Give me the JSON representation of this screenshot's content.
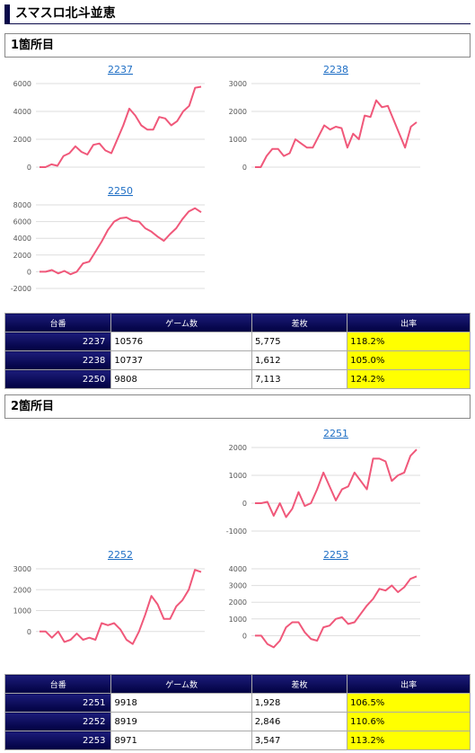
{
  "header": {
    "title": "スマスロ北斗並恵"
  },
  "sections": [
    {
      "title": "1箇所目",
      "charts": [
        {
          "type": "line",
          "title": "2237",
          "color": "#f0587a",
          "ylim": [
            0,
            6000
          ],
          "yticks": [
            0,
            2000,
            4000,
            6000
          ],
          "grid": true,
          "values": [
            0,
            0,
            200,
            100,
            800,
            1000,
            1500,
            1100,
            900,
            1600,
            1700,
            1200,
            1000,
            2000,
            3000,
            4200,
            3700,
            3000,
            2700,
            2700,
            3600,
            3500,
            3000,
            3300,
            4000,
            4400,
            5700,
            5775
          ]
        },
        {
          "type": "line",
          "title": "2238",
          "color": "#f0587a",
          "ylim": [
            0,
            3000
          ],
          "yticks": [
            0,
            1000,
            2000,
            3000
          ],
          "grid": true,
          "values": [
            0,
            0,
            400,
            650,
            650,
            400,
            500,
            1000,
            850,
            700,
            700,
            1100,
            1500,
            1350,
            1450,
            1400,
            700,
            1200,
            1000,
            1850,
            1800,
            2400,
            2150,
            2200,
            1700,
            1200,
            700,
            1450,
            1612
          ]
        },
        {
          "type": "line",
          "title": "2250",
          "color": "#f0587a",
          "ylim": [
            -2000,
            8000
          ],
          "yticks": [
            -2000,
            0,
            2000,
            4000,
            6000,
            8000
          ],
          "grid": true,
          "values": [
            0,
            0,
            200,
            -200,
            100,
            -300,
            0,
            1000,
            1200,
            2400,
            3600,
            5000,
            6000,
            6400,
            6500,
            6100,
            6000,
            5200,
            4800,
            4200,
            3700,
            4500,
            5200,
            6300,
            7200,
            7600,
            7113
          ]
        }
      ],
      "table": {
        "columns": [
          "台番",
          "ゲーム数",
          "差枚",
          "出率"
        ],
        "rows": [
          [
            "2237",
            "10576",
            "5,775",
            "118.2%"
          ],
          [
            "2238",
            "10737",
            "1,612",
            "105.0%"
          ],
          [
            "2250",
            "9808",
            "7,113",
            "124.2%"
          ]
        ]
      }
    },
    {
      "title": "2箇所目",
      "charts": [
        {
          "type": "line",
          "title": "2251",
          "color": "#f0587a",
          "ylim": [
            -1000,
            2000
          ],
          "yticks": [
            -1000,
            0,
            1000,
            2000
          ],
          "grid": true,
          "values": [
            0,
            0,
            50,
            -450,
            0,
            -500,
            -200,
            400,
            -100,
            0,
            500,
            1100,
            600,
            100,
            500,
            600,
            1100,
            800,
            500,
            1600,
            1600,
            1500,
            800,
            1000,
            1100,
            1700,
            1928
          ]
        },
        {
          "type": "line",
          "title": "2252",
          "color": "#f0587a",
          "ylim": [
            -1000,
            3000
          ],
          "yticks": [
            0,
            1000,
            2000,
            3000
          ],
          "grid": true,
          "values": [
            0,
            0,
            -300,
            0,
            -500,
            -400,
            -100,
            -400,
            -300,
            -400,
            400,
            300,
            400,
            100,
            -400,
            -600,
            0,
            800,
            1700,
            1300,
            600,
            600,
            1200,
            1500,
            2000,
            2950,
            2846
          ]
        },
        {
          "type": "line",
          "title": "2253",
          "color": "#f0587a",
          "ylim": [
            -1000,
            4000
          ],
          "yticks": [
            0,
            1000,
            2000,
            3000,
            4000
          ],
          "grid": true,
          "values": [
            0,
            0,
            -500,
            -700,
            -300,
            500,
            800,
            800,
            200,
            -200,
            -300,
            500,
            600,
            1000,
            1100,
            700,
            800,
            1300,
            1800,
            2200,
            2800,
            2700,
            3000,
            2600,
            2900,
            3400,
            3547
          ]
        }
      ],
      "table": {
        "columns": [
          "台番",
          "ゲーム数",
          "差枚",
          "出率"
        ],
        "rows": [
          [
            "2251",
            "9918",
            "1,928",
            "106.5%"
          ],
          [
            "2252",
            "8919",
            "2,846",
            "110.6%"
          ],
          [
            "2253",
            "8971",
            "3,547",
            "113.2%"
          ]
        ]
      }
    }
  ]
}
